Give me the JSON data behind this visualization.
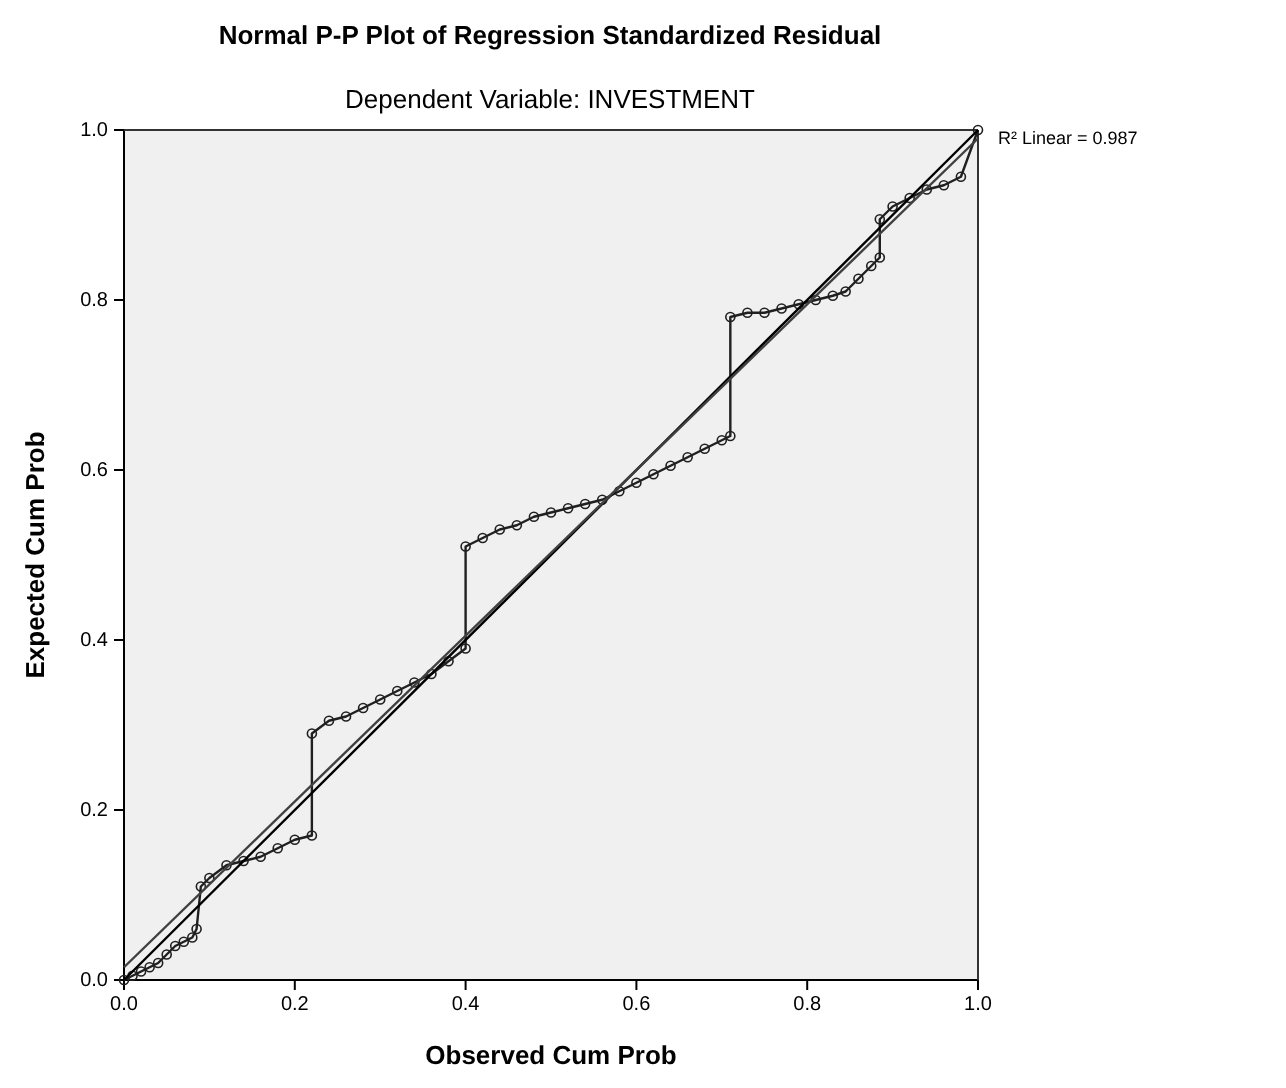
{
  "chart_data": {
    "type": "line",
    "title": "Normal P-P Plot of Regression Standardized Residual",
    "subtitle": "Dependent Variable: INVESTMENT",
    "xlabel": "Observed Cum Prob",
    "ylabel": "Expected Cum Prob",
    "xlim": [
      0,
      1
    ],
    "ylim": [
      0,
      1
    ],
    "xticks": [
      {
        "value": 0,
        "label": "0.0"
      },
      {
        "value": 0.2,
        "label": "0.2"
      },
      {
        "value": 0.4,
        "label": "0.4"
      },
      {
        "value": 0.6,
        "label": "0.6"
      },
      {
        "value": 0.8,
        "label": "0.8"
      },
      {
        "value": 1,
        "label": "1.0"
      }
    ],
    "yticks": [
      {
        "value": 0,
        "label": "0.0"
      },
      {
        "value": 0.2,
        "label": "0.2"
      },
      {
        "value": 0.4,
        "label": "0.4"
      },
      {
        "value": 0.6,
        "label": "0.6"
      },
      {
        "value": 0.8,
        "label": "0.8"
      },
      {
        "value": 1,
        "label": "1.0"
      }
    ],
    "grid": false,
    "marker": "circle",
    "annotations": [
      "R² Linear = 0.987"
    ],
    "series": [
      {
        "color": "#202020",
        "x": [
          0,
          0.01,
          0.02,
          0.03,
          0.04,
          0.05,
          0.06,
          0.07,
          0.08,
          0.085,
          0.09,
          0.1,
          0.12,
          0.14,
          0.16,
          0.18,
          0.2,
          0.22,
          0.22,
          0.24,
          0.26,
          0.28,
          0.3,
          0.32,
          0.34,
          0.36,
          0.38,
          0.4,
          0.4,
          0.42,
          0.44,
          0.46,
          0.48,
          0.5,
          0.52,
          0.54,
          0.56,
          0.58,
          0.6,
          0.62,
          0.64,
          0.66,
          0.68,
          0.7,
          0.71,
          0.71,
          0.73,
          0.75,
          0.77,
          0.79,
          0.81,
          0.83,
          0.845,
          0.86,
          0.875,
          0.885,
          0.885,
          0.9,
          0.92,
          0.94,
          0.96,
          0.98,
          1
        ],
        "values": [
          0,
          0.005,
          0.01,
          0.015,
          0.02,
          0.03,
          0.04,
          0.045,
          0.05,
          0.06,
          0.11,
          0.12,
          0.135,
          0.14,
          0.145,
          0.155,
          0.165,
          0.17,
          0.29,
          0.305,
          0.31,
          0.32,
          0.33,
          0.34,
          0.35,
          0.36,
          0.375,
          0.39,
          0.51,
          0.52,
          0.53,
          0.535,
          0.545,
          0.55,
          0.555,
          0.56,
          0.565,
          0.575,
          0.585,
          0.595,
          0.605,
          0.615,
          0.625,
          0.635,
          0.64,
          0.78,
          0.785,
          0.785,
          0.79,
          0.795,
          0.8,
          0.805,
          0.81,
          0.825,
          0.84,
          0.85,
          0.895,
          0.91,
          0.92,
          0.93,
          0.935,
          0.945,
          1
        ]
      },
      {
        "marker": "none",
        "color": "#000000",
        "x": [
          0,
          1
        ],
        "values": [
          0,
          1
        ]
      },
      {
        "marker": "none",
        "color": "#404040",
        "x": [
          0,
          1
        ],
        "values": [
          0.015,
          0.99
        ]
      }
    ]
  }
}
